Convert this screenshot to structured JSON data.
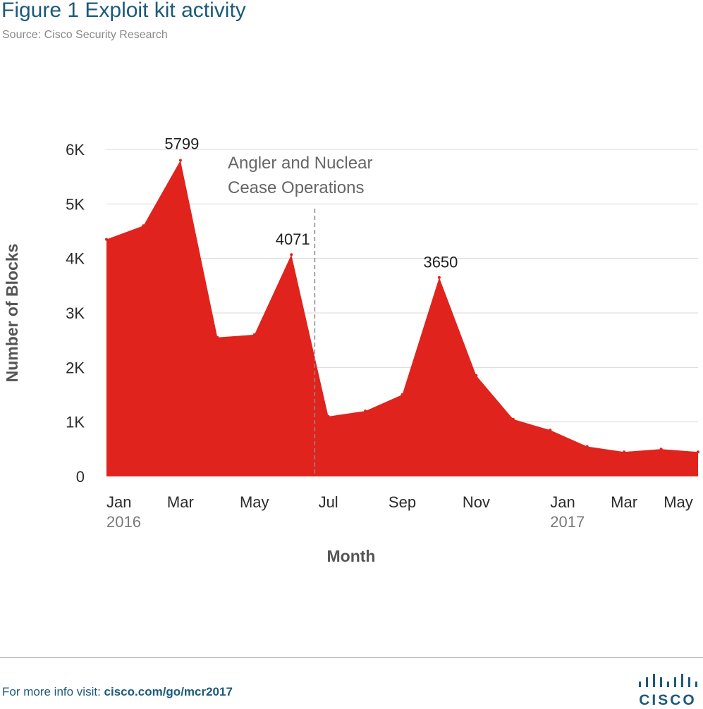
{
  "header": {
    "title": "Figure 1  Exploit kit activity",
    "source": "Source: Cisco Security Research"
  },
  "footer": {
    "prefix": "For more info visit: ",
    "link": "cisco.com/go/mcr2017",
    "logo_text": "CISCO"
  },
  "colors": {
    "area": "#e0231c",
    "title": "#1d5a7a",
    "grid": "#d9d9d9",
    "annotation": "#666666"
  },
  "chart_data": {
    "type": "area",
    "xlabel": "Month",
    "ylabel": "Number of Blocks",
    "ylim": [
      0,
      6000
    ],
    "y_ticks": [
      {
        "value": 0,
        "label": "0"
      },
      {
        "value": 1000,
        "label": "1K"
      },
      {
        "value": 2000,
        "label": "2K"
      },
      {
        "value": 3000,
        "label": "3K"
      },
      {
        "value": 4000,
        "label": "4K"
      },
      {
        "value": 5000,
        "label": "5K"
      },
      {
        "value": 6000,
        "label": "6K"
      }
    ],
    "x": [
      "2016-01",
      "2016-02",
      "2016-03",
      "2016-04",
      "2016-05",
      "2016-06",
      "2016-07",
      "2016-08",
      "2016-09",
      "2016-10",
      "2016-11",
      "2016-12",
      "2017-01",
      "2017-02",
      "2017-03",
      "2017-04",
      "2017-05"
    ],
    "x_ticks": [
      {
        "x": "2016-01",
        "label": "Jan",
        "year": "2016"
      },
      {
        "x": "2016-03",
        "label": "Mar"
      },
      {
        "x": "2016-05",
        "label": "May"
      },
      {
        "x": "2016-07",
        "label": "Jul"
      },
      {
        "x": "2016-09",
        "label": "Sep"
      },
      {
        "x": "2016-11",
        "label": "Nov"
      },
      {
        "x": "2017-01",
        "label": "Jan",
        "year": "2017"
      },
      {
        "x": "2017-03",
        "label": "Mar"
      },
      {
        "x": "2017-05",
        "label": "May"
      }
    ],
    "grid": true,
    "series": [
      {
        "values": [
          4350,
          4600,
          5799,
          2550,
          2600,
          4071,
          1100,
          1200,
          1500,
          3650,
          1850,
          1050,
          850,
          550,
          450,
          500,
          450
        ]
      }
    ],
    "data_labels": [
      {
        "x": "2016-03",
        "text": "5799"
      },
      {
        "x": "2016-06",
        "text": "4071"
      },
      {
        "x": "2016-10",
        "text": "3650"
      }
    ],
    "annotations": [
      {
        "x": "2016-06-20",
        "lines": [
          "Angler and Nuclear",
          "Cease Operations"
        ]
      }
    ]
  }
}
